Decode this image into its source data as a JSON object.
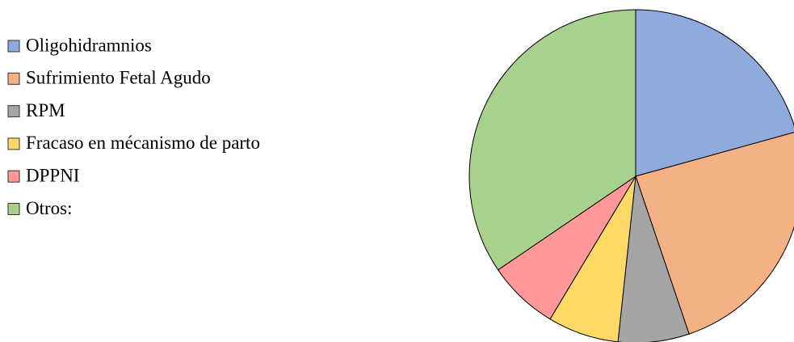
{
  "chart_data": {
    "type": "pie",
    "categories": [
      "Oligohidramnios",
      "Sufrimiento Fetal Agudo",
      "RPM",
      "Fracaso en mécanismo de parto",
      "DPPNI",
      "Otros:"
    ],
    "values": [
      20.7,
      24.1,
      6.9,
      6.9,
      6.9,
      34.5
    ],
    "colors": [
      "#8faadc",
      "#f4b183",
      "#a5a5a5",
      "#ffd966",
      "#ff9999",
      "#a9d18e"
    ],
    "legend": "left"
  }
}
